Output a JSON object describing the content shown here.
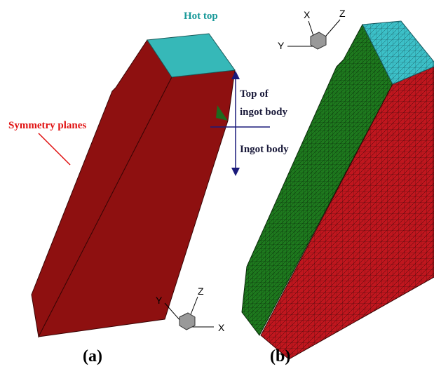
{
  "panel_a": {
    "labels": {
      "hot_top": "Hot top",
      "symmetry_planes": "Symmetry planes",
      "top_of_ingot_body": [
        "Top of",
        "ingot body"
      ],
      "ingot_body": "Ingot body"
    },
    "axes": {
      "x": "X",
      "y": "Y",
      "z": "Z"
    },
    "caption": "(a)"
  },
  "panel_b": {
    "axes": {
      "x": "X",
      "y": "Y",
      "z": "Z"
    },
    "caption": "(b)"
  }
}
